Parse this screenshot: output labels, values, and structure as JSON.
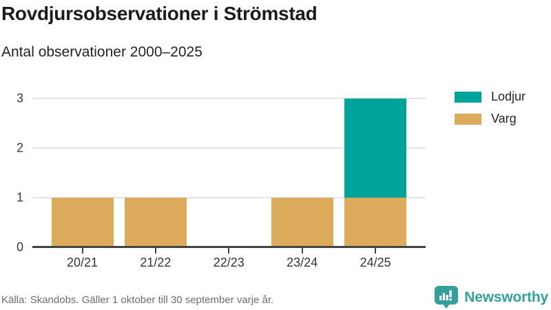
{
  "header": {
    "title": "Rovdjursobservationer i Strömstad",
    "subtitle": "Antal observationer 2000–2025"
  },
  "chart_data": {
    "type": "bar",
    "stacked": true,
    "title": "Rovdjursobservationer i Strömstad",
    "subtitle": "Antal observationer 2000–2025",
    "categories": [
      "20/21",
      "21/22",
      "22/23",
      "23/24",
      "24/25"
    ],
    "series": [
      {
        "name": "Lodjur",
        "color": "#00a39a",
        "values": [
          0,
          0,
          0,
          0,
          2
        ]
      },
      {
        "name": "Varg",
        "color": "#dcac5c",
        "values": [
          1,
          1,
          0,
          1,
          1
        ]
      }
    ],
    "totals": [
      1,
      1,
      0,
      1,
      3
    ],
    "ylim": [
      0,
      3
    ],
    "yticks": [
      0,
      1,
      2,
      3
    ],
    "xlabel": "",
    "ylabel": "",
    "grid": true,
    "legend_position": "top-right"
  },
  "footer": {
    "source": "Källa: Skandobs. Gäller 1 oktober till 30 september varje år.",
    "brand": "Newsworthy",
    "brand_color": "#35a099"
  }
}
